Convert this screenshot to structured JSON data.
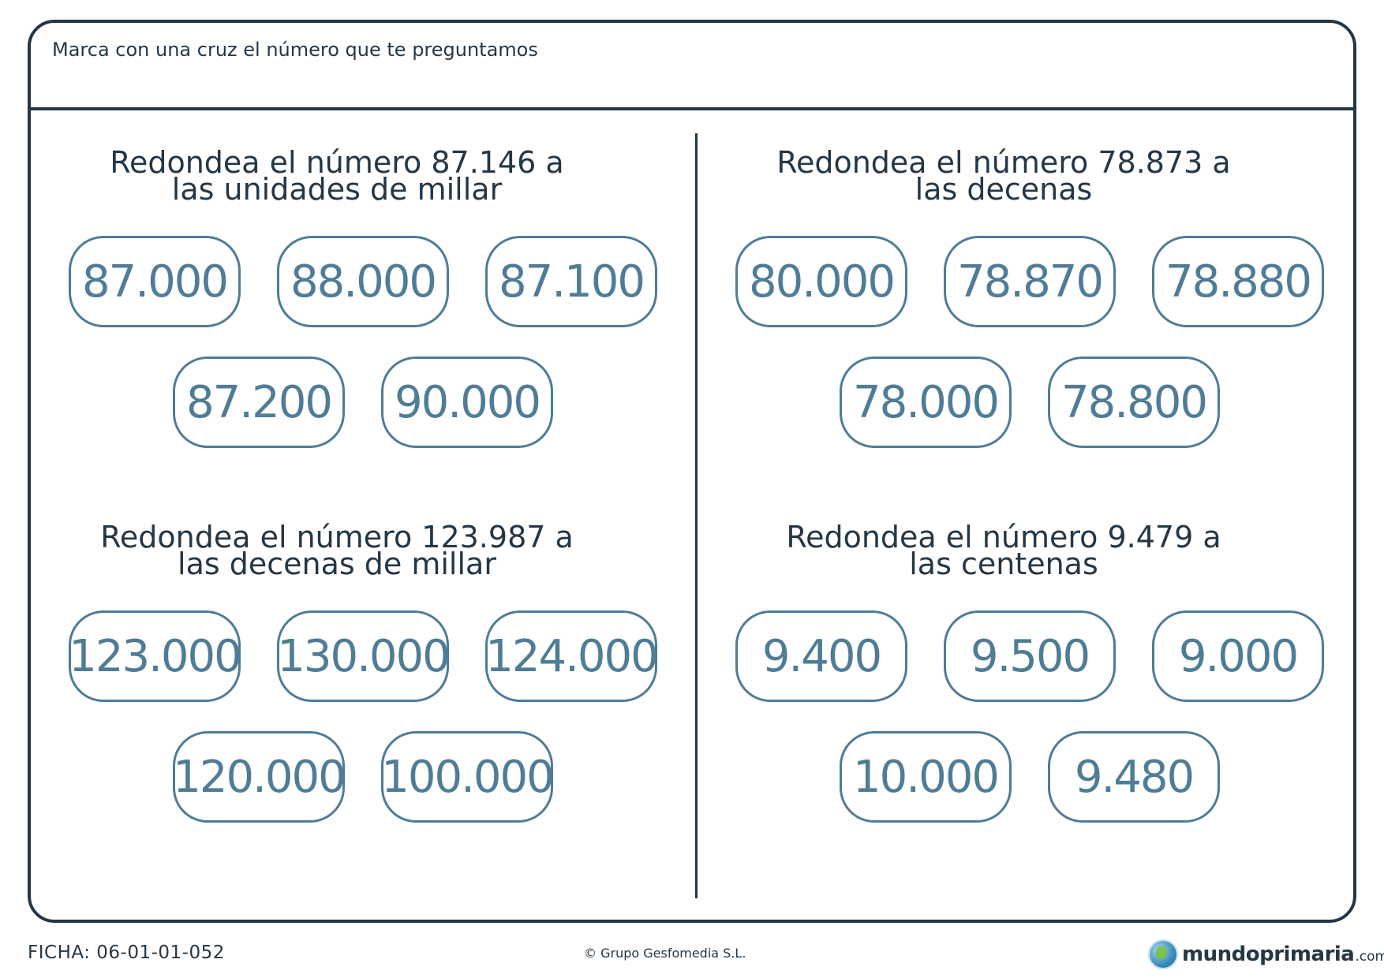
{
  "instruction": "Marca con una cruz el número que te preguntamos",
  "exercises": [
    {
      "prompt_line1": "Redondea el número 87.146 a",
      "prompt_line2": "las unidades de millar",
      "options": [
        "87.000",
        "88.000",
        "87.100",
        "87.200",
        "90.000"
      ]
    },
    {
      "prompt_line1": "Redondea el número 78.873 a",
      "prompt_line2": "las decenas",
      "options": [
        "80.000",
        "78.870",
        "78.880",
        "78.000",
        "78.800"
      ]
    },
    {
      "prompt_line1": "Redondea el número 123.987 a",
      "prompt_line2": "las decenas de millar",
      "options": [
        "123.000",
        "130.000",
        "124.000",
        "120.000",
        "100.000"
      ]
    },
    {
      "prompt_line1": "Redondea el número 9.479 a",
      "prompt_line2": "las centenas",
      "options": [
        "9.400",
        "9.500",
        "9.000",
        "10.000",
        "9.480"
      ]
    }
  ],
  "footer": {
    "ficha": "FICHA: 06-01-01-052",
    "copyright": "© Grupo Gesfomedia S.L.",
    "brand_name": "mundoprimaria",
    "brand_tld": ".com"
  },
  "colors": {
    "ink": "#253746",
    "option_blue": "#4f7c96"
  },
  "icons": {
    "brand_logo": "globe-icon"
  }
}
